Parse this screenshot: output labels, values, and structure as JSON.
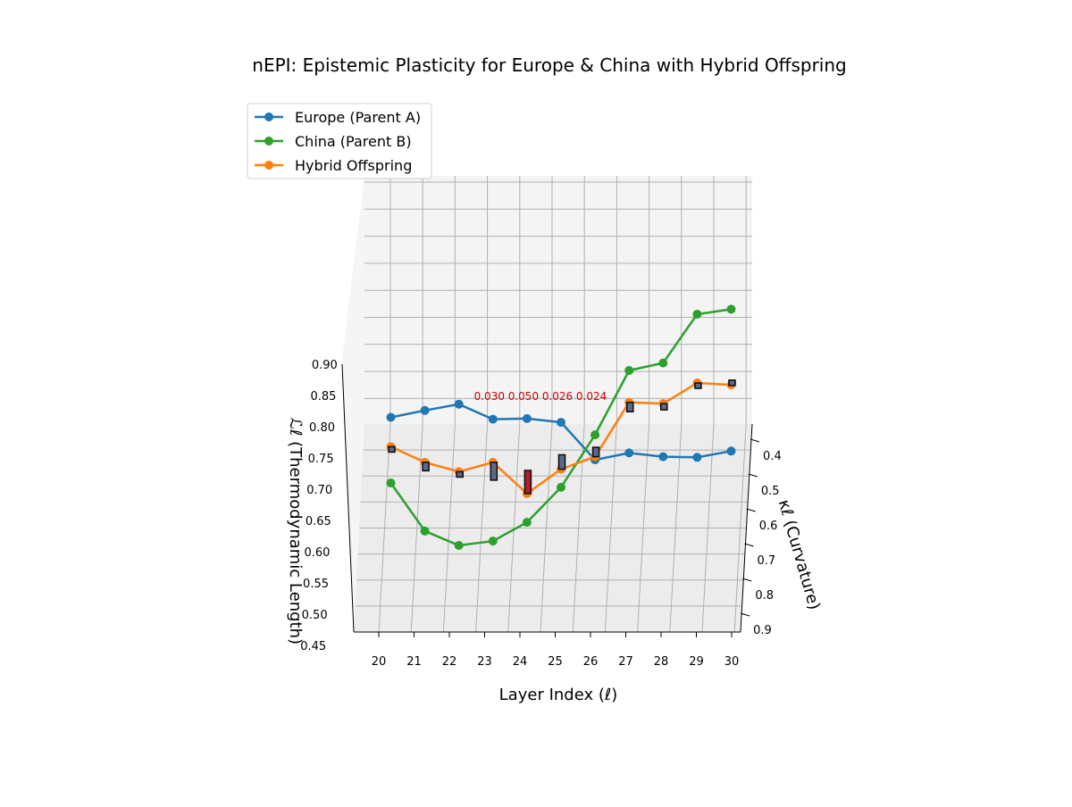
{
  "chart_data": {
    "type": "line",
    "title": "nEPI: Epistemic Plasticity for Europe & China with Hybrid Offspring",
    "xlabel": "Layer Index (ℓ)",
    "ylabel_kappa": "κℓ (Curvature)",
    "zlabel": "ℒℓ (Thermodynamic Length)",
    "x": [
      20,
      21,
      22,
      23,
      24,
      25,
      26,
      27,
      28,
      29,
      30
    ],
    "x_ticks": [
      "20",
      "21",
      "22",
      "23",
      "24",
      "25",
      "26",
      "27",
      "28",
      "29",
      "30"
    ],
    "kappa_ticks": [
      "0.4",
      "0.5",
      "0.6",
      "0.7",
      "0.8",
      "0.9"
    ],
    "z_ticks": [
      "0.45",
      "0.50",
      "0.55",
      "0.60",
      "0.65",
      "0.70",
      "0.75",
      "0.80",
      "0.85",
      "0.90"
    ],
    "series": [
      {
        "name": "Europe (Parent A)",
        "color": "#1f77b4",
        "z": [
          0.815,
          0.826,
          0.836,
          0.812,
          0.813,
          0.807,
          0.747,
          0.758,
          0.752,
          0.751,
          0.761
        ]
      },
      {
        "name": "China (Parent B)",
        "color": "#2ca02c",
        "z": [
          0.71,
          0.633,
          0.61,
          0.617,
          0.647,
          0.703,
          0.787,
          0.89,
          0.902,
          0.98,
          0.988
        ]
      },
      {
        "name": "Hybrid Offspring",
        "color": "#ff7f0e",
        "z": [
          0.768,
          0.743,
          0.728,
          0.743,
          0.693,
          0.732,
          0.752,
          0.839,
          0.837,
          0.87,
          0.867
        ]
      }
    ],
    "plasticity_bars": [
      {
        "x": 20,
        "color": "#5b6a8c"
      },
      {
        "x": 21,
        "color": "#5b6a8c"
      },
      {
        "x": 22,
        "color": "#5b6a8c"
      },
      {
        "x": 23,
        "color": "#5b6a8c"
      },
      {
        "x": 24,
        "color": "#b01f2e"
      },
      {
        "x": 25,
        "color": "#5b6a8c"
      },
      {
        "x": 26,
        "color": "#5b6a8c"
      },
      {
        "x": 27,
        "color": "#5b6a8c"
      },
      {
        "x": 28,
        "color": "#5b6a8c"
      },
      {
        "x": 29,
        "color": "#5b6a8c"
      },
      {
        "x": 30,
        "color": "#5b6a8c"
      }
    ],
    "annotations": [
      {
        "x": 23,
        "text": "0.030"
      },
      {
        "x": 24,
        "text": "0.050"
      },
      {
        "x": 25,
        "text": "0.026"
      },
      {
        "x": 26,
        "text": "0.024"
      }
    ],
    "zlim": [
      0.45,
      0.9
    ],
    "legend_position": "top-left",
    "grid": true
  }
}
